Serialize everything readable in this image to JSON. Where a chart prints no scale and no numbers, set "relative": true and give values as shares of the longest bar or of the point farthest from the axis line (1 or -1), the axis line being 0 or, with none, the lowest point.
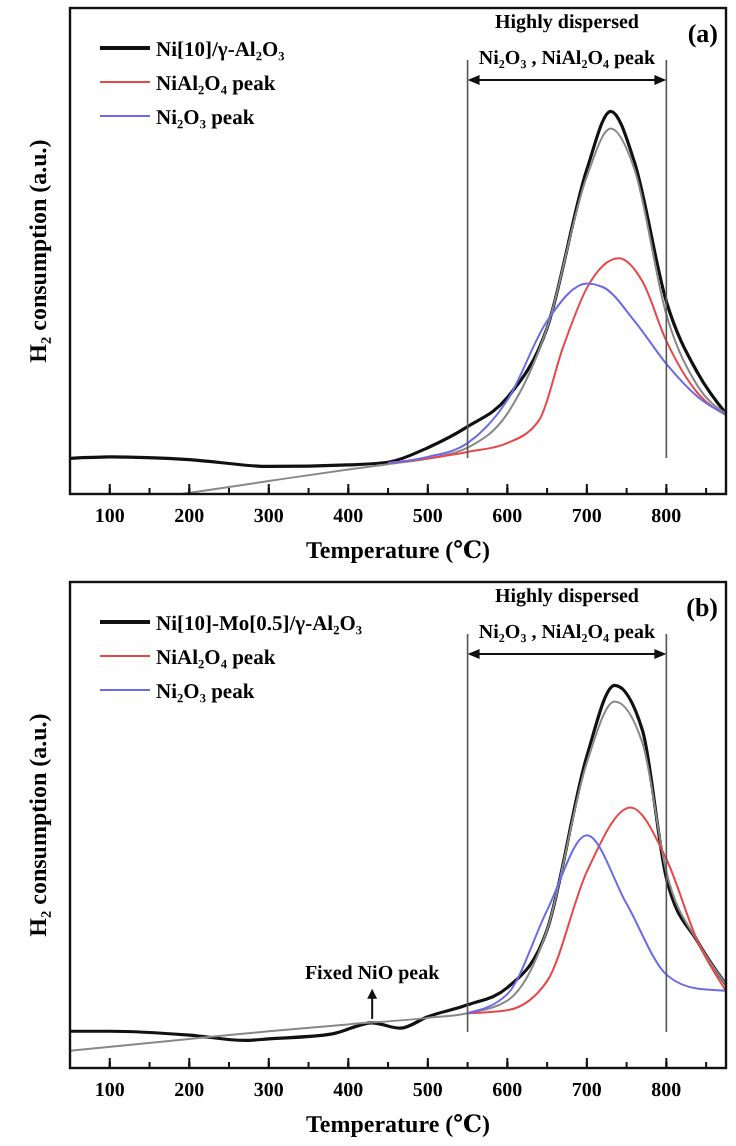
{
  "chart_data": [
    {
      "type": "line",
      "relative": true,
      "xlim": [
        50,
        875
      ],
      "xticks": [
        100,
        200,
        300,
        400,
        500,
        600,
        700,
        800
      ],
      "xlabel": "Temperature (℃)",
      "ylabel": "H₂ consumption (a.u.)",
      "legend": "top left",
      "annotations": [
        "(a)",
        "Highly dispersed",
        "Ni₂O₃ , NiAl₂O₄ peak"
      ],
      "ref_lines": [
        {
          "axis": "x",
          "value": 550
        },
        {
          "axis": "x",
          "value": 800
        }
      ],
      "series": [
        {
          "name": "Ni[10]/γ-Al₂O₃",
          "color": "#111111",
          "x": [
            50,
            100,
            200,
            300,
            400,
            450,
            500,
            550,
            600,
            650,
            700,
            730,
            760,
            800,
            840,
            875
          ],
          "values": [
            0.093,
            0.097,
            0.09,
            0.072,
            0.076,
            0.083,
            0.121,
            0.176,
            0.252,
            0.434,
            0.848,
            1.0,
            0.866,
            0.503,
            0.314,
            0.21
          ]
        },
        {
          "color": "#888888",
          "x": [
            190,
            300,
            400,
            450,
            500,
            550,
            600,
            650,
            700,
            730,
            760,
            800,
            840,
            875
          ],
          "values": [
            0,
            0.034,
            0.064,
            0.078,
            0.093,
            0.121,
            0.21,
            0.434,
            0.83,
            0.955,
            0.848,
            0.469,
            0.28,
            0.21
          ]
        },
        {
          "name": "NiAl₂O₄ peak",
          "color": "#e8474a",
          "x": [
            450,
            500,
            550,
            600,
            640,
            670,
            700,
            740,
            770,
            800,
            840,
            875
          ],
          "values": [
            0.081,
            0.093,
            0.11,
            0.133,
            0.193,
            0.383,
            0.538,
            0.616,
            0.555,
            0.4,
            0.262,
            0.207
          ]
        },
        {
          "name": "Ni₂O₃ peak",
          "color": "#6b6be8",
          "x": [
            450,
            500,
            550,
            600,
            650,
            700,
            720,
            760,
            800,
            840,
            875
          ],
          "values": [
            0.081,
            0.097,
            0.133,
            0.245,
            0.452,
            0.55,
            0.541,
            0.452,
            0.34,
            0.253,
            0.207
          ]
        }
      ]
    },
    {
      "type": "line",
      "relative": true,
      "xlim": [
        50,
        875
      ],
      "xticks": [
        100,
        200,
        300,
        400,
        500,
        600,
        700,
        800
      ],
      "xlabel": "Temperature (℃)",
      "ylabel": "H₂ consumption (a.u.)",
      "legend": "top left",
      "annotations": [
        "(b)",
        "Highly dispersed",
        "Ni₂O₃ , NiAl₂O₄ peak",
        {
          "text": "Fixed NiO peak",
          "x": 430,
          "y": 0.118
        }
      ],
      "ref_lines": [
        {
          "axis": "x",
          "value": 550
        },
        {
          "axis": "x",
          "value": 800
        }
      ],
      "series": [
        {
          "name": "Ni[10]-Mo[0.5]/γ-Al₂O₃",
          "color": "#111111",
          "x": [
            50,
            100,
            200,
            270,
            300,
            380,
            430,
            465,
            500,
            550,
            600,
            650,
            700,
            735,
            770,
            800,
            840,
            875
          ],
          "values": [
            0.096,
            0.096,
            0.086,
            0.072,
            0.076,
            0.089,
            0.118,
            0.104,
            0.134,
            0.165,
            0.21,
            0.361,
            0.815,
            1.0,
            0.882,
            0.496,
            0.328,
            0.218
          ]
        },
        {
          "color": "#888888",
          "x": [
            50,
            200,
            300,
            400,
            500,
            550,
            600,
            650,
            700,
            735,
            770,
            800,
            840,
            875
          ],
          "values": [
            0.045,
            0.076,
            0.096,
            0.114,
            0.131,
            0.143,
            0.176,
            0.361,
            0.798,
            0.958,
            0.849,
            0.513,
            0.328,
            0.218
          ]
        },
        {
          "name": "NiAl₂O₄ peak",
          "color": "#e8474a",
          "x": [
            550,
            600,
            650,
            700,
            755,
            800,
            840,
            875
          ],
          "values": [
            0.143,
            0.151,
            0.227,
            0.513,
            0.681,
            0.546,
            0.328,
            0.202
          ]
        },
        {
          "name": "Ni₂O₃ peak",
          "color": "#6b6be8",
          "x": [
            550,
            600,
            650,
            700,
            750,
            800,
            840,
            875
          ],
          "values": [
            0.143,
            0.193,
            0.412,
            0.608,
            0.429,
            0.244,
            0.207,
            0.202
          ]
        }
      ]
    }
  ]
}
